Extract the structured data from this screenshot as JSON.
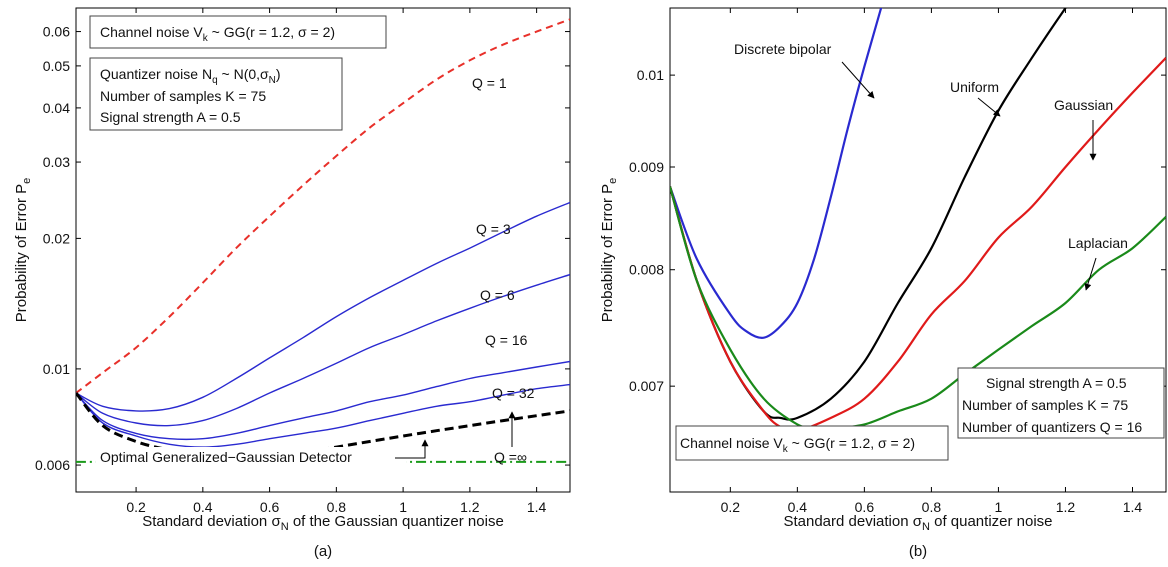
{
  "panels": [
    {
      "caption": "(a)",
      "note_channel": "Channel noise V",
      "note_channel_sub": "k",
      "note_channel_rest": " ~ GG(r = 1.2, σ = 2)",
      "note_quant_prefix": "Quantizer noise N",
      "note_quant_sub1": "q",
      "note_quant_mid": " ~ N(0,σ",
      "note_quant_sub2": "N",
      "note_quant_end": ")",
      "note_samples": "Number of samples K = 75",
      "note_signal": "Signal strength A = 0.5",
      "ylabel_main": "Probability of Error  P",
      "ylabel_sub": "e",
      "xlabel_prefix": "Standard deviation σ",
      "xlabel_sub": "N",
      "xlabel_rest": " of the Gaussian quantizer noise",
      "optimal_label": "Optimal Generalized−Gaussian Detector",
      "q_labels": [
        "Q = 1",
        "Q = 3",
        "Q = 6",
        "Q = 16",
        "Q = 32",
        "Q =∞"
      ]
    },
    {
      "caption": "(b)",
      "note_channel": "Channel noise V",
      "note_channel_sub": "k",
      "note_channel_rest": " ~ GG(r = 1.2, σ = 2)",
      "note_signal": "Signal strength A = 0.5",
      "note_samples": "Number of samples K = 75",
      "note_quantizers": "Number of quantizers Q = 16",
      "ylabel_main": "Probability of Error  P",
      "ylabel_sub": "e",
      "xlabel_prefix": "Standard deviation σ",
      "xlabel_sub": "N",
      "xlabel_rest": " of quantizer noise",
      "curve_labels": [
        "Discrete bipolar",
        "Uniform",
        "Gaussian",
        "Laplacian"
      ]
    }
  ],
  "chart_data": [
    {
      "type": "line",
      "yscale": "log",
      "xlim": [
        0.02,
        1.5
      ],
      "ylim": [
        0.0052,
        0.068
      ],
      "x_ticks": [
        0.2,
        0.4,
        0.6,
        0.8,
        1,
        1.2,
        1.4
      ],
      "x_tick_labels": [
        "0.2",
        "0.4",
        "0.6",
        "0.8",
        "1",
        "1.2",
        "1.4"
      ],
      "y_ticks": [
        0.006,
        0.01,
        0.02,
        0.03,
        0.04,
        0.05,
        0.06
      ],
      "y_tick_labels": [
        "0.006",
        "0.01",
        "0.02",
        "0.03",
        "0.04",
        "0.05",
        "0.06"
      ],
      "colors": {
        "Q1": "#e8302a",
        "Qn": "#2a2ad0",
        "Qinf": "#000000",
        "optimal": "#1a9a1a"
      },
      "series": [
        {
          "name": "Q = 1",
          "style": "dashed",
          "color": "#e8302a",
          "x": [
            0.02,
            0.1,
            0.2,
            0.3,
            0.4,
            0.5,
            0.6,
            0.7,
            0.8,
            0.9,
            1.0,
            1.1,
            1.2,
            1.3,
            1.4,
            1.5
          ],
          "y": [
            0.0088,
            0.0098,
            0.0112,
            0.0132,
            0.0158,
            0.019,
            0.0225,
            0.0265,
            0.031,
            0.036,
            0.041,
            0.0465,
            0.0515,
            0.056,
            0.06,
            0.064
          ]
        },
        {
          "name": "Q = 3",
          "style": "solid",
          "color": "#2a2ad0",
          "x": [
            0.02,
            0.1,
            0.2,
            0.3,
            0.4,
            0.5,
            0.6,
            0.7,
            0.8,
            0.9,
            1.0,
            1.1,
            1.2,
            1.3,
            1.4,
            1.5
          ],
          "y": [
            0.0088,
            0.0082,
            0.008,
            0.0081,
            0.0086,
            0.0095,
            0.0106,
            0.0118,
            0.0132,
            0.0146,
            0.016,
            0.0175,
            0.019,
            0.0207,
            0.0225,
            0.0242
          ]
        },
        {
          "name": "Q = 6",
          "style": "solid",
          "color": "#2a2ad0",
          "x": [
            0.02,
            0.1,
            0.2,
            0.3,
            0.4,
            0.5,
            0.6,
            0.7,
            0.8,
            0.9,
            1.0,
            1.1,
            1.2,
            1.3,
            1.4,
            1.5
          ],
          "y": [
            0.0088,
            0.0079,
            0.0075,
            0.0074,
            0.0076,
            0.0081,
            0.0088,
            0.0095,
            0.0103,
            0.0112,
            0.012,
            0.0129,
            0.0138,
            0.0147,
            0.0156,
            0.0165
          ]
        },
        {
          "name": "Q = 16",
          "style": "solid",
          "color": "#2a2ad0",
          "x": [
            0.02,
            0.1,
            0.2,
            0.3,
            0.4,
            0.5,
            0.6,
            0.7,
            0.8,
            0.9,
            1.0,
            1.1,
            1.2,
            1.3,
            1.4,
            1.5
          ],
          "y": [
            0.0088,
            0.0076,
            0.0071,
            0.0069,
            0.0069,
            0.0071,
            0.0074,
            0.0077,
            0.008,
            0.0084,
            0.0087,
            0.0091,
            0.0095,
            0.0098,
            0.0101,
            0.0104
          ]
        },
        {
          "name": "Q = 32",
          "style": "solid",
          "color": "#2a2ad0",
          "x": [
            0.02,
            0.1,
            0.2,
            0.3,
            0.4,
            0.5,
            0.6,
            0.7,
            0.8,
            0.9,
            1.0,
            1.1,
            1.2,
            1.3,
            1.4,
            1.5
          ],
          "y": [
            0.0088,
            0.0075,
            0.007,
            0.0067,
            0.0066,
            0.0067,
            0.0069,
            0.0071,
            0.0073,
            0.0076,
            0.0079,
            0.0082,
            0.0084,
            0.0087,
            0.009,
            0.0092
          ]
        },
        {
          "name": "Q =∞",
          "style": "dashed",
          "color": "#000000",
          "x": [
            0.02,
            0.1,
            0.2,
            0.3,
            0.4,
            0.5,
            0.6,
            0.7,
            0.8,
            0.9,
            1.0,
            1.1,
            1.2,
            1.3,
            1.4,
            1.5
          ],
          "y": [
            0.0088,
            0.0074,
            0.0068,
            0.0065,
            0.0063,
            0.0062,
            0.0063,
            0.0064,
            0.0066,
            0.0068,
            0.007,
            0.0072,
            0.0074,
            0.0076,
            0.0078,
            0.008
          ]
        },
        {
          "name": "Optimal Generalized−Gaussian Detector",
          "style": "dashdot",
          "color": "#1a9a1a",
          "x": [
            0.02,
            1.5
          ],
          "y": [
            0.0061,
            0.0061
          ]
        }
      ]
    },
    {
      "type": "line",
      "yscale": "log",
      "xlim": [
        0.02,
        1.5
      ],
      "ylim": [
        0.0062,
        0.0108
      ],
      "x_ticks": [
        0.2,
        0.4,
        0.6,
        0.8,
        1,
        1.2,
        1.4
      ],
      "x_tick_labels": [
        "0.2",
        "0.4",
        "0.6",
        "0.8",
        "1",
        "1.2",
        "1.4"
      ],
      "y_ticks": [
        0.007,
        0.008,
        0.009,
        0.01
      ],
      "y_tick_labels": [
        "0.007",
        "0.008",
        "0.009",
        "0.01"
      ],
      "colors": {
        "bipolar": "#2a2ad0",
        "uniform": "#000000",
        "gaussian": "#e01a1a",
        "laplacian": "#1a8a1a"
      },
      "series": [
        {
          "name": "Discrete bipolar",
          "color": "#2a2ad0",
          "x": [
            0.02,
            0.1,
            0.2,
            0.25,
            0.3,
            0.35,
            0.4,
            0.45,
            0.5,
            0.55,
            0.6,
            0.65,
            0.7
          ],
          "y": [
            0.0088,
            0.0081,
            0.0076,
            0.00745,
            0.0074,
            0.0075,
            0.0077,
            0.0081,
            0.0087,
            0.0094,
            0.0101,
            0.0108,
            0.0116
          ]
        },
        {
          "name": "Uniform",
          "color": "#000000",
          "x": [
            0.02,
            0.1,
            0.2,
            0.3,
            0.35,
            0.4,
            0.5,
            0.6,
            0.7,
            0.8,
            0.9,
            1.0,
            1.1,
            1.2,
            1.3
          ],
          "y": [
            0.0088,
            0.0079,
            0.0072,
            0.0068,
            0.00675,
            0.00675,
            0.0069,
            0.0072,
            0.0077,
            0.0082,
            0.0089,
            0.0096,
            0.0102,
            0.0108,
            0.0114
          ]
        },
        {
          "name": "Gaussian",
          "color": "#e01a1a",
          "x": [
            0.02,
            0.1,
            0.2,
            0.3,
            0.35,
            0.4,
            0.5,
            0.6,
            0.7,
            0.8,
            0.9,
            1.0,
            1.1,
            1.2,
            1.3,
            1.4,
            1.5
          ],
          "y": [
            0.0088,
            0.0079,
            0.0072,
            0.0068,
            0.00668,
            0.00665,
            0.00675,
            0.0069,
            0.0072,
            0.0076,
            0.0079,
            0.0083,
            0.0086,
            0.009,
            0.0094,
            0.0098,
            0.0102
          ]
        },
        {
          "name": "Laplacian",
          "color": "#1a8a1a",
          "x": [
            0.02,
            0.1,
            0.2,
            0.3,
            0.4,
            0.45,
            0.5,
            0.6,
            0.7,
            0.8,
            0.9,
            1.0,
            1.1,
            1.2,
            1.3,
            1.4,
            1.5
          ],
          "y": [
            0.0088,
            0.0079,
            0.0073,
            0.0069,
            0.0067,
            0.00668,
            0.00667,
            0.0067,
            0.0068,
            0.0069,
            0.0071,
            0.0073,
            0.0075,
            0.0077,
            0.008,
            0.0082,
            0.0085
          ]
        }
      ]
    }
  ]
}
